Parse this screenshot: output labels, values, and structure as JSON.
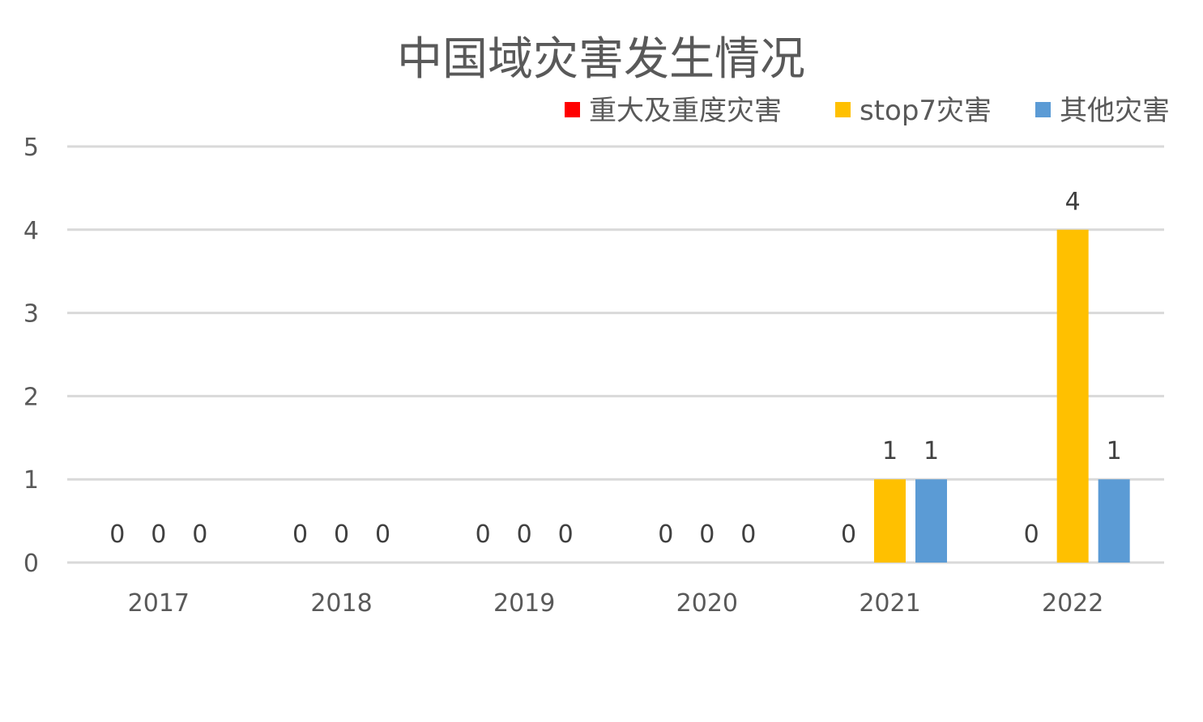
{
  "chart_data": {
    "type": "bar",
    "title": "中国域灾害发生情况",
    "categories": [
      "2017",
      "2018",
      "2019",
      "2020",
      "2021",
      "2022"
    ],
    "series": [
      {
        "name": "重大及重度灾害",
        "color": "#ff0000",
        "values": [
          0,
          0,
          0,
          0,
          0,
          0
        ]
      },
      {
        "name": "stop7灾害",
        "color": "#ffc000",
        "values": [
          0,
          0,
          0,
          0,
          1,
          4
        ]
      },
      {
        "name": "其他灾害",
        "color": "#5b9bd5",
        "values": [
          0,
          0,
          0,
          0,
          1,
          1
        ]
      }
    ],
    "ylim": [
      0,
      5
    ],
    "yticks": [
      "0",
      "1",
      "2",
      "3",
      "4",
      "5"
    ],
    "grid": true,
    "legend_position": "top-right",
    "data_labels": true
  }
}
